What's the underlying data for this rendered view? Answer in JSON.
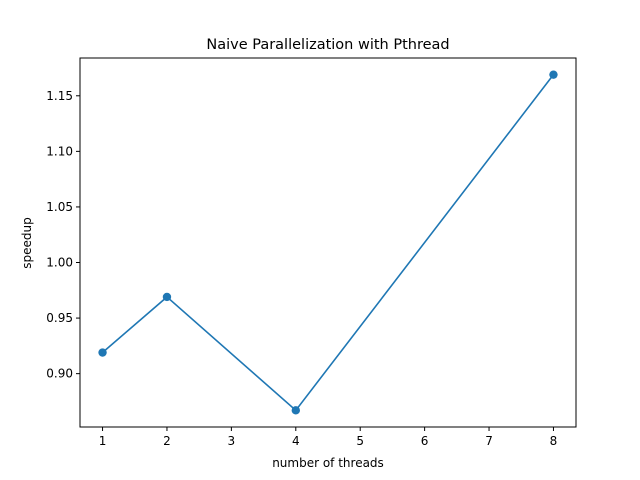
{
  "chart_data": {
    "type": "line",
    "title": "Naive Parallelization with Pthread",
    "xlabel": "number of threads",
    "ylabel": "speedup",
    "x": [
      1,
      2,
      4,
      8
    ],
    "series": [
      {
        "values": [
          0.919,
          0.969,
          0.867,
          1.169
        ],
        "color": "#1f77b4",
        "marker": "circle"
      }
    ],
    "xlim": [
      0.65,
      8.35
    ],
    "ylim": [
      0.852,
      1.184
    ],
    "xticks": [
      1,
      2,
      3,
      4,
      5,
      6,
      7,
      8
    ],
    "xtick_labels": [
      "1",
      "2",
      "3",
      "4",
      "5",
      "6",
      "7",
      "8"
    ],
    "yticks": [
      0.9,
      0.95,
      1.0,
      1.05,
      1.1,
      1.15
    ],
    "ytick_labels": [
      "0.90",
      "0.95",
      "1.00",
      "1.05",
      "1.10",
      "1.15"
    ],
    "grid": false,
    "legend": "none"
  }
}
